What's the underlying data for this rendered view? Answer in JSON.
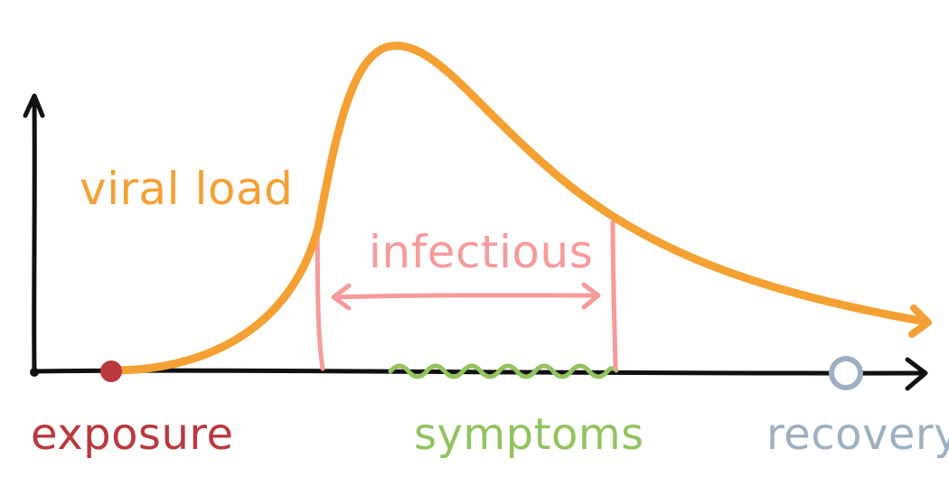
{
  "labels": {
    "viral_load": "viral load",
    "infectious": "infectious",
    "exposure": "exposure",
    "symptoms": "symptoms",
    "recovery": "recovery"
  },
  "colors": {
    "axis": "#111111",
    "viral_load": "#F5A033",
    "infectious": "#F79A9A",
    "exposure": "#B9393F",
    "symptoms": "#93C35F",
    "recovery": "#9DB0C2"
  },
  "icons": {
    "exposure_marker": "filled-dot",
    "recovery_marker": "hollow-circle"
  }
}
